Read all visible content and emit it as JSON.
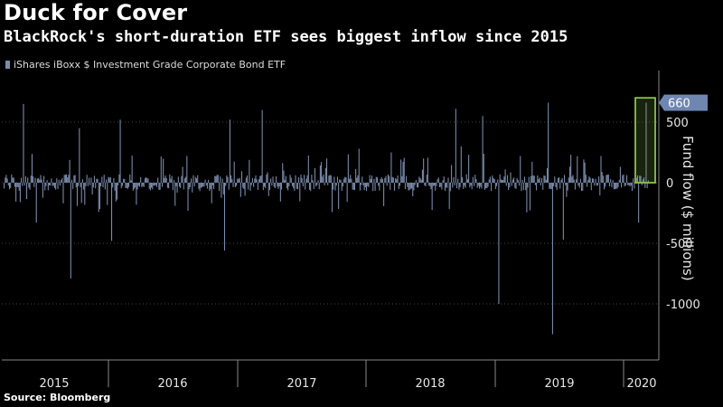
{
  "header": {
    "title": "Duck for Cover",
    "subtitle": "BlackRock's short-duration ETF sees biggest inflow since 2015"
  },
  "footer": {
    "source": "Source: Bloomberg"
  },
  "colors": {
    "bars": "#7b8cab",
    "highlight_box": "#8bc34a",
    "background": "#000000",
    "grid": "#444444",
    "callout": "#6f86b1"
  },
  "chart_data": {
    "type": "bar",
    "title": "Duck for Cover",
    "subtitle": "BlackRock's short-duration ETF sees biggest inflow since 2015",
    "legend": [
      "iShares iBoxx $ Investment Grade Corporate Bond ETF"
    ],
    "legend_position": "top-left",
    "ylabel": "Fund flow ($ millions)",
    "xlabel": "",
    "ylim": [
      -1300,
      720
    ],
    "yticks": [
      500,
      0,
      -500,
      -1000
    ],
    "ytick_labels": [
      "500",
      "0",
      "-500",
      "-1000"
    ],
    "x_categories": [
      "2015",
      "2016",
      "2017",
      "2018",
      "2019",
      "2020"
    ],
    "grid": "horizontal dotted",
    "callout": {
      "value": 660,
      "label": "660"
    },
    "notable_flows": [
      {
        "period": "2015",
        "value": 650
      },
      {
        "period": "2015",
        "value": -790
      },
      {
        "period": "2016",
        "value": 520
      },
      {
        "period": "2016",
        "value": -560
      },
      {
        "period": "2017",
        "value": 600
      },
      {
        "period": "2018",
        "value": 610
      },
      {
        "period": "2018",
        "value": -1000
      },
      {
        "period": "2019",
        "value": 660
      },
      {
        "period": "2019",
        "value": -1250
      },
      {
        "period": "2020",
        "value": 660
      }
    ],
    "series": [
      {
        "name": "iShares iBoxx $ Investment Grade Corporate Bond ETF"
      }
    ]
  }
}
